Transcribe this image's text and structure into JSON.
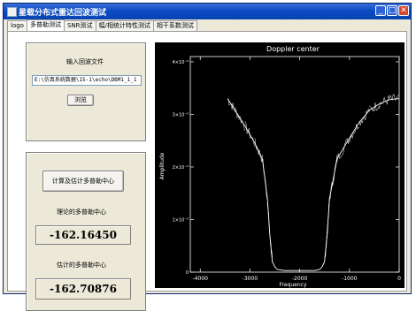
{
  "window": {
    "title": "星载分布式雷达回波测试",
    "controls": [
      "_",
      "□",
      "✕"
    ]
  },
  "tabs": [
    "logo",
    "多普勒测试",
    "SNR测试",
    "幅/相统计特性测试",
    "相干系数测试"
  ],
  "active_tab_index": 1,
  "input_group": {
    "label": "输入回波文件",
    "path_value": "E:\\仿真系统数据\\15-1\\echo\\DBM1_1_1",
    "browse_label": "浏览"
  },
  "doppler_group": {
    "compute_label": "计算及估计多普勒中心",
    "theory_label": "理论的多普勒中心",
    "theory_value": "-162.16450",
    "estimate_label": "估计的多普勒中心",
    "estimate_value": "-162.70876"
  },
  "colors": {
    "titlebar": "#0a4bc4",
    "plot_background": "#000000",
    "plot_foreground": "#ffffff"
  },
  "chart_data": {
    "type": "line",
    "title": "Doppler center",
    "xlabel": "Frequency",
    "ylabel": "Amplitude",
    "xlim": [
      -4200,
      0
    ],
    "ylim": [
      0,
      4.1e-05
    ],
    "x_ticks": [
      -4000,
      -3000,
      -2000,
      -1000,
      0
    ],
    "x_tick_labels": [
      "-4000",
      "-3000",
      "-2000",
      "-1000",
      "0"
    ],
    "y_ticks": [
      0,
      1e-05,
      2e-05,
      3e-05,
      4e-05
    ],
    "y_tick_labels": [
      "0",
      "1×10⁻⁵",
      "2×10⁻⁵",
      "3×10⁻⁵",
      "4×10⁻⁵"
    ],
    "x": [
      -3450,
      -3300,
      -3100,
      -2900,
      -2750,
      -2650,
      -2600,
      -2550,
      -2500,
      -2450,
      -2300,
      -2100,
      -1900,
      -1700,
      -1600,
      -1550,
      -1500,
      -1450,
      -1400,
      -1250,
      -1000,
      -800,
      -600,
      -400,
      -200,
      0
    ],
    "y": [
      3.3e-05,
      3.08e-05,
      2.78e-05,
      2.45e-05,
      2.15e-05,
      1.4e-05,
      7e-06,
      2e-06,
      1e-06,
      5e-07,
      3e-07,
      3e-07,
      3e-07,
      3e-07,
      5e-07,
      1e-06,
      2e-06,
      7e-06,
      1.4e-05,
      2.15e-05,
      2.55e-05,
      2.85e-05,
      3.08e-05,
      3.2e-05,
      3.28e-05,
      3.3e-05
    ]
  }
}
